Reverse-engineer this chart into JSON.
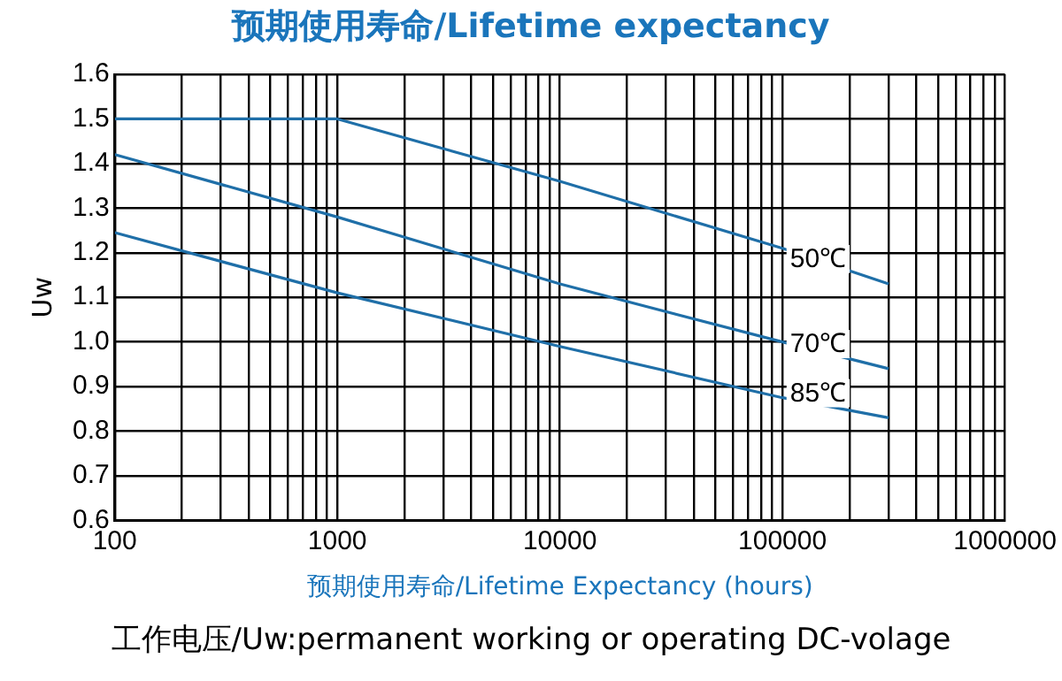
{
  "chart_data": {
    "type": "line",
    "title": "预期使用寿命/Lifetime expectancy",
    "xlabel": "预期使用寿命/Lifetime Expectancy (hours)",
    "ylabel": "Uw",
    "annotations": [
      "工作电压/Uw:permanent working or operating DC-volage"
    ],
    "log": "x",
    "grid": true,
    "legend": false,
    "marker": "none",
    "line_style": "solid",
    "xlim": [
      100,
      1000000
    ],
    "ylim": [
      0.6,
      1.6
    ],
    "xticks": [
      100,
      {
        "value": 200,
        "label": null
      },
      {
        "value": 300,
        "label": null
      },
      {
        "value": 400,
        "label": null
      },
      {
        "value": 500,
        "label": null
      },
      {
        "value": 600,
        "label": null
      },
      {
        "value": 700,
        "label": null
      },
      {
        "value": 800,
        "label": null
      },
      {
        "value": 900,
        "label": null
      },
      1000,
      {
        "value": 2000,
        "label": null
      },
      {
        "value": 3000,
        "label": null
      },
      {
        "value": 4000,
        "label": null
      },
      {
        "value": 5000,
        "label": null
      },
      {
        "value": 6000,
        "label": null
      },
      {
        "value": 7000,
        "label": null
      },
      {
        "value": 8000,
        "label": null
      },
      {
        "value": 9000,
        "label": null
      },
      10000,
      {
        "value": 20000,
        "label": null
      },
      {
        "value": 30000,
        "label": null
      },
      {
        "value": 40000,
        "label": null
      },
      {
        "value": 50000,
        "label": null
      },
      {
        "value": 60000,
        "label": null
      },
      {
        "value": 70000,
        "label": null
      },
      {
        "value": 80000,
        "label": null
      },
      {
        "value": 90000,
        "label": null
      },
      100000,
      {
        "value": 200000,
        "label": null
      },
      {
        "value": 300000,
        "label": null
      },
      {
        "value": 400000,
        "label": null
      },
      {
        "value": 500000,
        "label": null
      },
      {
        "value": 600000,
        "label": null
      },
      {
        "value": 700000,
        "label": null
      },
      {
        "value": 800000,
        "label": null
      },
      {
        "value": 900000,
        "label": null
      },
      1000000
    ],
    "yticks": [
      0.6,
      0.7,
      0.8,
      0.9,
      {
        "value": 1,
        "label": "1.0"
      },
      1.1,
      1.2,
      1.3,
      1.4,
      1.5,
      1.6
    ],
    "series": [
      {
        "name": "50℃",
        "color": "#1f6fa8",
        "x": [
          100,
          1000,
          10000,
          100000,
          300000
        ],
        "values": [
          1.5,
          1.5,
          1.36,
          1.21,
          1.13
        ]
      },
      {
        "name": "70℃",
        "color": "#1f6fa8",
        "x": [
          100,
          1000,
          10000,
          100000,
          300000
        ],
        "values": [
          1.42,
          1.28,
          1.13,
          1.0,
          0.94
        ]
      },
      {
        "name": "85℃",
        "color": "#1f6fa8",
        "x": [
          100,
          1000,
          10000,
          100000,
          300000
        ],
        "values": [
          1.245,
          1.11,
          0.99,
          0.875,
          0.83
        ]
      }
    ]
  }
}
